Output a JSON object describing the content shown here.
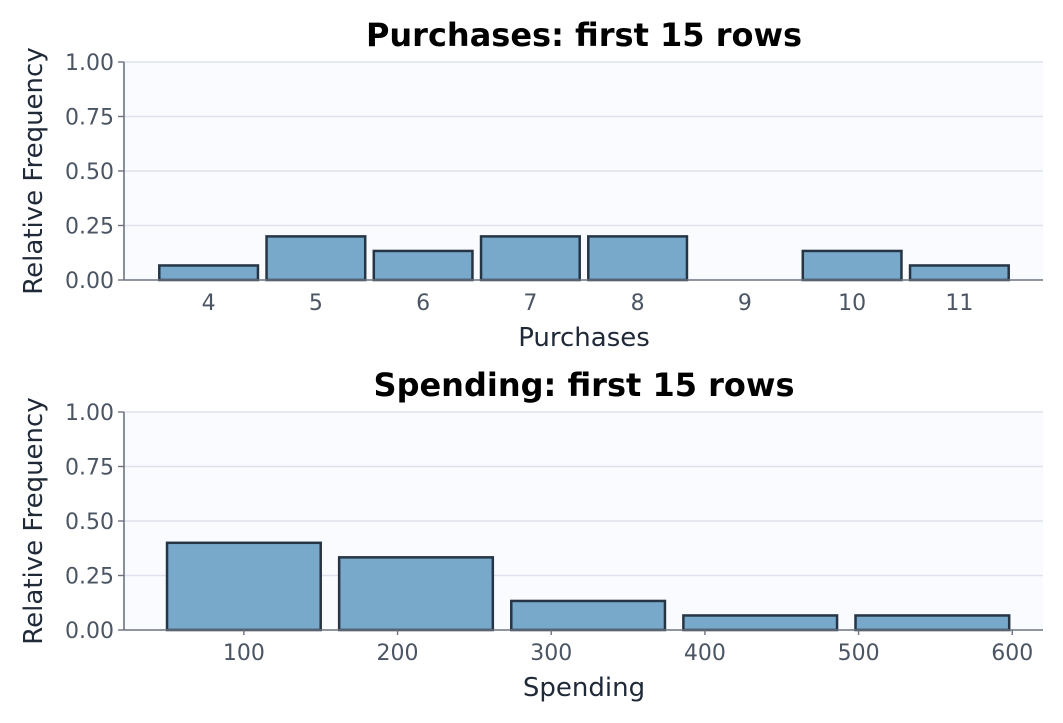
{
  "colors": {
    "plot_background": "#fafbfe",
    "bar_fill": "#78a8ca",
    "bar_edge": "#253545"
  },
  "chart_data": [
    {
      "type": "bar",
      "title": "Purchases: first 15 rows",
      "xlabel": "Purchases",
      "ylabel": "Relative Frequency",
      "ylim": [
        0,
        1
      ],
      "yticks": [
        "0.00",
        "0.25",
        "0.50",
        "0.75",
        "1.00"
      ],
      "categories": [
        "4",
        "5",
        "6",
        "7",
        "8",
        "9",
        "10",
        "11"
      ],
      "values": [
        0.0667,
        0.2,
        0.1333,
        0.2,
        0.2,
        0.0,
        0.1333,
        0.0667
      ],
      "grid": true
    },
    {
      "type": "bar",
      "title": "Spending: first 15 rows",
      "xlabel": "Spending",
      "ylabel": "Relative Frequency",
      "ylim": [
        0,
        1
      ],
      "xlim": [
        22,
        620
      ],
      "yticks": [
        "0.00",
        "0.25",
        "0.50",
        "0.75",
        "1.00"
      ],
      "xticks": [
        100,
        200,
        300,
        400,
        500,
        600
      ],
      "bins": [
        {
          "start": 50,
          "end": 150,
          "value": 0.4
        },
        {
          "start": 162,
          "end": 262,
          "value": 0.3333
        },
        {
          "start": 274,
          "end": 374,
          "value": 0.1333
        },
        {
          "start": 386,
          "end": 486,
          "value": 0.0667
        },
        {
          "start": 498,
          "end": 598,
          "value": 0.0667
        }
      ],
      "grid": true
    }
  ]
}
